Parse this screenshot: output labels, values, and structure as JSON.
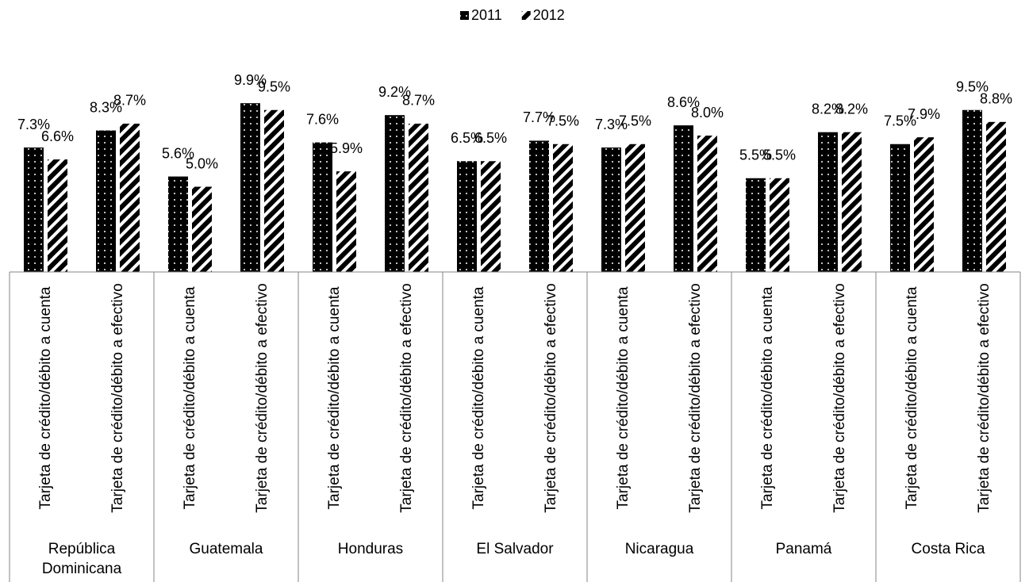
{
  "chart_data": {
    "type": "bar",
    "legend": "top",
    "groups": [
      "República Dominicana",
      "Guatemala",
      "Honduras",
      "El Salvador",
      "Nicaragua",
      "Panamá",
      "Costa Rica"
    ],
    "categories": [
      "Tarjeta de crédito/débito a cuenta",
      "Tarjeta de crédito/débito a efectivo",
      "Tarjeta de crédito/débito a cuenta",
      "Tarjeta de crédito/débito a efectivo",
      "Tarjeta de crédito/débito a cuenta",
      "Tarjeta de crédito/débito a efectivo",
      "Tarjeta de crédito/débito a cuenta",
      "Tarjeta de crédito/débito a efectivo",
      "Tarjeta de crédito/débito a cuenta",
      "Tarjeta de crédito/débito a efectivo",
      "Tarjeta de crédito/débito a cuenta",
      "Tarjeta de crédito/débito a efectivo",
      "Tarjeta de crédito/débito a cuenta",
      "Tarjeta de crédito/débito a efectivo"
    ],
    "series": [
      {
        "name": "2011",
        "color": "#4f81bd",
        "pattern": "dots",
        "values": [
          7.3,
          8.3,
          5.6,
          9.9,
          7.6,
          9.2,
          6.5,
          7.7,
          7.3,
          8.6,
          5.5,
          8.2,
          7.5,
          9.5
        ],
        "value_labels": [
          "7.3%",
          "8.3%",
          "5.6%",
          "9.9%",
          "7.6%",
          "9.2%",
          "6.5%",
          "7.7%",
          "7.3%",
          "8.6%",
          "5.5%",
          "8.2%",
          "7.5%",
          "9.5%"
        ]
      },
      {
        "name": "2012",
        "color": "#4f81bd",
        "pattern": "stripes",
        "values": [
          6.6,
          8.7,
          5.0,
          9.5,
          5.9,
          8.7,
          6.5,
          7.5,
          7.5,
          8.0,
          5.5,
          8.2,
          7.9,
          8.8
        ],
        "value_labels": [
          "6.6%",
          "8.7%",
          "5.0%",
          "9.5%",
          "5.9%",
          "8.7%",
          "6.5%",
          "7.5%",
          "7.5%",
          "8.0%",
          "5.5%",
          "8.2%",
          "7.9%",
          "8.8%"
        ]
      }
    ],
    "ylim": [
      0,
      12
    ]
  }
}
